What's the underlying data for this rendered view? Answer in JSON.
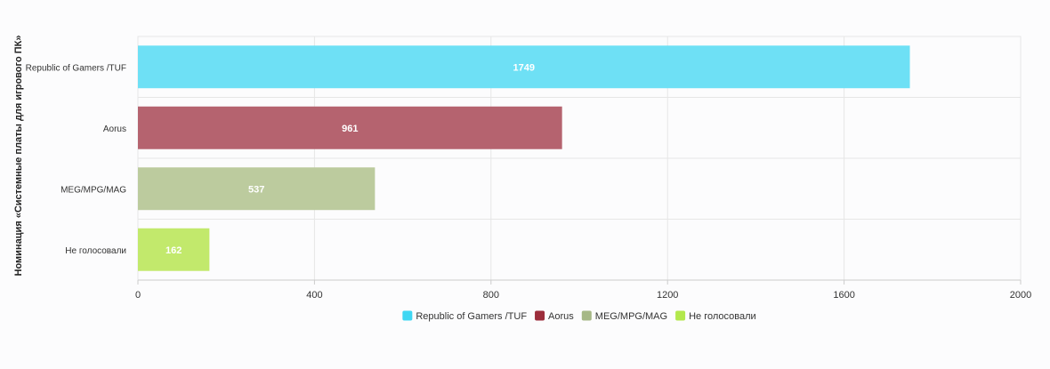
{
  "chart_data": {
    "type": "bar",
    "orientation": "horizontal",
    "ylabel": "Номинация «Системные платы для игрового ПК»",
    "categories": [
      "Republic of Gamers /TUF",
      "Aorus",
      "MEG/MPG/MAG",
      "Не голосовали"
    ],
    "values": [
      1749,
      961,
      537,
      162
    ],
    "colors": [
      "#6ee0f5",
      "#b5636f",
      "#bccb9e",
      "#c2e96c"
    ],
    "legend": {
      "placement": "bottom",
      "items": [
        {
          "label": "Republic of Gamers /TUF",
          "color": "#3fd7f3"
        },
        {
          "label": "Aorus",
          "color": "#9c2d3b"
        },
        {
          "label": "MEG/MPG/MAG",
          "color": "#a6b886"
        },
        {
          "label": "Не голосовали",
          "color": "#b3e84c"
        }
      ]
    },
    "xlim": [
      0,
      2000
    ],
    "xticks": [
      0,
      400,
      800,
      1200,
      1600,
      2000
    ],
    "grid": true
  }
}
